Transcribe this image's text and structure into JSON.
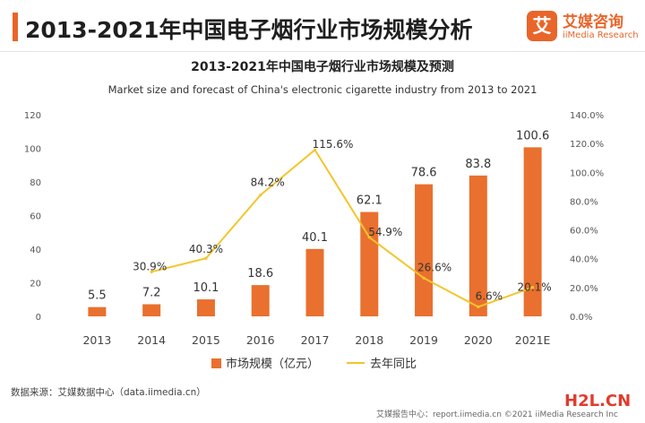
{
  "header": {
    "title": "2013-2021年中国电子烟行业市场规模分析",
    "logo_mark": "艾",
    "logo_cn": "艾媒咨询",
    "logo_en": "iiMedia Research"
  },
  "footer": {
    "source": "数据来源：艾媒数据中心（data.iimedia.cn）",
    "report": "艾媒报告中心：report.iimedia.cn ©2021 iiMedia Research Inc",
    "watermark": "H2L.CN"
  },
  "chart_data": {
    "type": "bar",
    "title": "2013-2021年中国电子烟行业市场规模及预测",
    "subtitle": "Market size and forecast of China's electronic cigarette industry from 2013 to 2021",
    "categories": [
      "2013",
      "2014",
      "2015",
      "2016",
      "2017",
      "2018",
      "2019",
      "2020",
      "2021E"
    ],
    "series": [
      {
        "name": "市场规模（亿元）",
        "type": "bar",
        "axis": "left",
        "color": "#e9702e",
        "values": [
          5.5,
          7.2,
          10.1,
          18.6,
          40.1,
          62.1,
          78.6,
          83.8,
          100.6
        ],
        "labels": [
          "5.5",
          "7.2",
          "10.1",
          "18.6",
          "40.1",
          "62.1",
          "78.6",
          "83.8",
          "100.6"
        ]
      },
      {
        "name": "去年同比",
        "type": "line",
        "axis": "right",
        "color": "#f3c52c",
        "values": [
          null,
          30.9,
          40.3,
          84.2,
          115.6,
          54.9,
          26.6,
          6.6,
          20.1
        ],
        "labels": [
          "",
          "30.9%",
          "40.3%",
          "84.2%",
          "115.6%",
          "54.9%",
          "26.6%",
          "6.6%",
          "20.1%"
        ]
      }
    ],
    "y_left": {
      "min": 0,
      "max": 120,
      "ticks": [
        "0",
        "20",
        "40",
        "60",
        "80",
        "100",
        "120"
      ]
    },
    "y_right": {
      "min": 0,
      "max": 140,
      "unit": "%",
      "ticks": [
        "0.0%",
        "20.0%",
        "40.0%",
        "60.0%",
        "80.0%",
        "100.0%",
        "120.0%",
        "140.0%"
      ]
    },
    "grid": false,
    "legend_position": "bottom"
  }
}
